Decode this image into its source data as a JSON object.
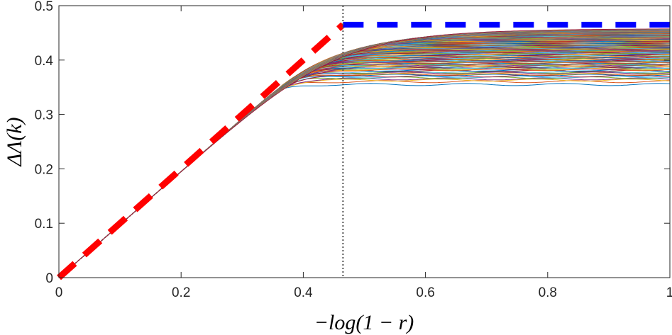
{
  "chart_data": {
    "type": "line",
    "xlabel": "−log(1 − r)",
    "ylabel": "ΔΛ(k)",
    "xlim": [
      0,
      1
    ],
    "ylim": [
      0,
      0.5
    ],
    "xticks": [
      "0",
      "0.2",
      "0.4",
      "0.6",
      "0.8",
      "1"
    ],
    "yticks": [
      "0",
      "0.1",
      "0.2",
      "0.3",
      "0.4",
      "0.5"
    ],
    "grid": false,
    "curves": {
      "description_of_family": "many colored curves rising along the diagonal then saturating",
      "plateau_range": [
        0.355,
        0.458
      ],
      "colors": [
        "#0072BD",
        "#D95319",
        "#EDB120",
        "#7E2F8E",
        "#77AC30",
        "#4DBEEE",
        "#A2142F"
      ]
    },
    "reference_lines": [
      {
        "style": "red-dashed",
        "color": "#FF0000",
        "points": [
          [
            0,
            0
          ],
          [
            0.465,
            0.465
          ]
        ]
      },
      {
        "style": "blue-dashed",
        "color": "#0000FF",
        "points": [
          [
            0.465,
            0.465
          ],
          [
            1,
            0.465
          ]
        ]
      },
      {
        "style": "gray-dotted",
        "color": "#555555",
        "x": 0.465
      }
    ]
  }
}
